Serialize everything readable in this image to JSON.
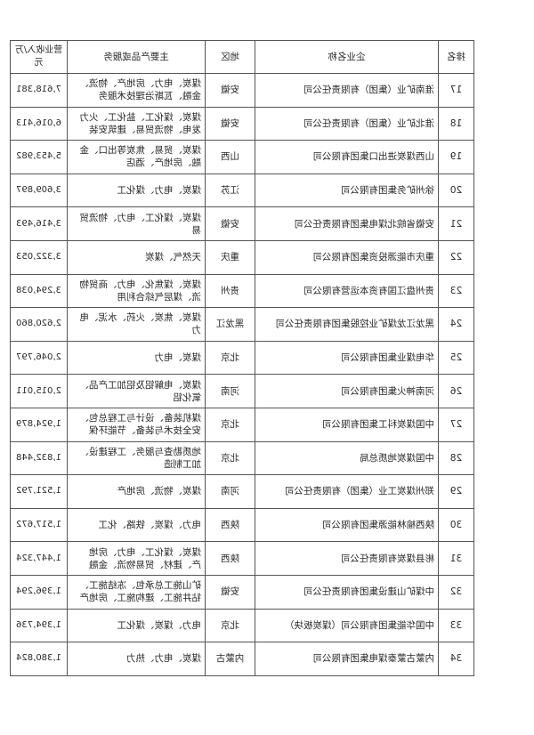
{
  "headers": {
    "rank": "排名",
    "name": "企业名称",
    "region": "地区",
    "products": "主要产品或服务",
    "revenue": "营业收入/万元"
  },
  "rows": [
    {
      "rank": "17",
      "name": "淮南矿业（集团）有限责任公司",
      "region": "安徽",
      "products": "煤炭、电力、房地产、物流、金融、瓦斯治理技术服务",
      "revenue": "7,618,381"
    },
    {
      "rank": "18",
      "name": "淮北矿业（集团）有限责任公司",
      "region": "安徽",
      "products": "煤炭、煤化工、盐化工、火力发电、物流贸易、建筑安装",
      "revenue": "6,016,413"
    },
    {
      "rank": "19",
      "name": "山西煤炭进出口集团有限公司",
      "region": "山西",
      "products": "煤炭、贸易、焦炭等出口、金融、房地产、酒店",
      "revenue": "5,453,982"
    },
    {
      "rank": "20",
      "name": "徐州矿务集团有限公司",
      "region": "江苏",
      "products": "煤炭、电力、煤化工",
      "revenue": "3,609,897"
    },
    {
      "rank": "21",
      "name": "安徽省皖北煤电集团有限责任公司",
      "region": "安徽",
      "products": "煤炭、煤化工、电力、物流贸易",
      "revenue": "3,416,493"
    },
    {
      "rank": "22",
      "name": "重庆市能源投资集团有限公司",
      "region": "重庆",
      "products": "天然气、煤炭",
      "revenue": "3,322,053"
    },
    {
      "rank": "23",
      "name": "贵州盘江国有资本运营有限公司",
      "region": "贵州",
      "products": "煤炭、煤焦化、电力、商贸物流、煤层气综合利用",
      "revenue": "3,294,038"
    },
    {
      "rank": "24",
      "name": "黑龙江龙煤矿业控股集团有限责任公司",
      "region": "黑龙江",
      "products": "煤炭、焦炭、火药、水泥、电力",
      "revenue": "2,620,860"
    },
    {
      "rank": "25",
      "name": "华电煤业集团有限公司",
      "region": "北京",
      "products": "煤炭、电力",
      "revenue": "2,046,797"
    },
    {
      "rank": "26",
      "name": "河南神火集团有限公司",
      "region": "河南",
      "products": "煤炭、电解铝及铝加工产品、氧化铝",
      "revenue": "2,015,011"
    },
    {
      "rank": "27",
      "name": "中国煤炭科工集团有限公司",
      "region": "北京",
      "products": "煤机装备、设计与工程总包、安全技术与装备、节能环保",
      "revenue": "1,924,879"
    },
    {
      "rank": "28",
      "name": "中国煤炭地质总局",
      "region": "北京",
      "products": "地质勘查与服务、工程建设、加工制造",
      "revenue": "1,832,448"
    },
    {
      "rank": "29",
      "name": "郑州煤炭工业（集团）有限责任公司",
      "region": "河南",
      "products": "煤炭、物流、房地产",
      "revenue": "1,521,792"
    },
    {
      "rank": "30",
      "name": "陕西榆林能源集团有限公司",
      "region": "陕西",
      "products": "电力、煤炭、铁路、化工",
      "revenue": "1,517,672"
    },
    {
      "rank": "31",
      "name": "彬县煤炭有限责任公司",
      "region": "陕西",
      "products": "煤炭、煤化工、电力、房地产、建材、贸易物流、金融",
      "revenue": "1,447,324"
    },
    {
      "rank": "32",
      "name": "中煤矿山建设集团有限责任公司",
      "region": "安徽",
      "products": "矿山施工总承包、冻结施工、钻井施工、建构施工、房地产",
      "revenue": "1,396,294"
    },
    {
      "rank": "33",
      "name": "中国华能集团有限公司（煤炭板块）",
      "region": "北京",
      "products": "电力、煤炭、煤化工",
      "revenue": "1,394,736"
    },
    {
      "rank": "34",
      "name": "内蒙古蒙泰煤电集团有限公司",
      "region": "内蒙古",
      "products": "煤炭、电力、热力",
      "revenue": "1,380,824"
    }
  ]
}
